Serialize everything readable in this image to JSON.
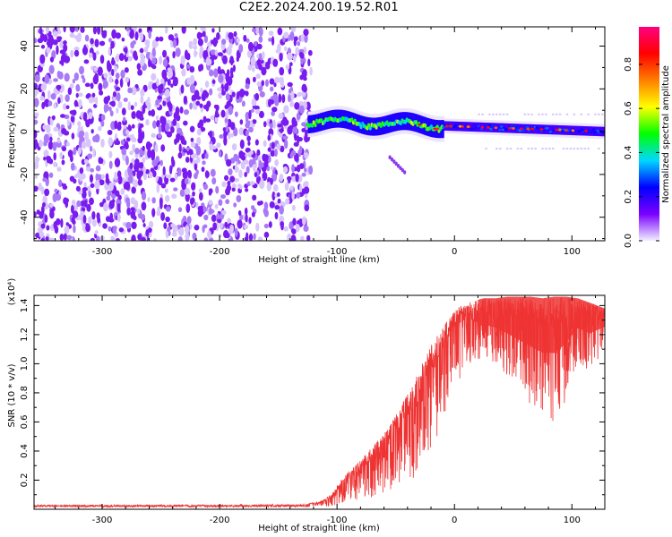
{
  "page": {
    "title": "C2E2.2024.200.19.52.R01"
  },
  "chart_data": [
    {
      "type": "heatmap",
      "title": "C2E2.2024.200.19.52.R01",
      "xlabel": "Height of straight line (km)",
      "ylabel": "Frequency (Hz)",
      "xlim": [
        -358,
        128
      ],
      "ylim": [
        -51,
        49
      ],
      "x_ticks": [
        -300,
        -200,
        -100,
        0,
        100
      ],
      "y_ticks": [
        -40,
        -20,
        0,
        20,
        40
      ],
      "colorbar": {
        "label": "Normalized spectral amplitude",
        "range": [
          0,
          0.97
        ],
        "ticks": [
          0.0,
          0.2,
          0.4,
          0.6,
          0.8
        ],
        "colormap": [
          "#f2f0ff",
          "#7b00ff",
          "#0000ff",
          "#00d8ff",
          "#00ff00",
          "#ffff00",
          "#ff7f00",
          "#ff0000",
          "#ff0080"
        ]
      },
      "regions": [
        {
          "name": "noise",
          "x_range": [
            -358,
            -122
          ],
          "freq_range": [
            -51,
            49
          ],
          "amplitude": 0.08
        },
        {
          "name": "signal",
          "x_range": [
            -125,
            128
          ],
          "freq_center_start": 5,
          "freq_center_end": 0,
          "amplitude_max": 0.95
        }
      ]
    },
    {
      "type": "line",
      "xlabel": "Height of straight line (km)",
      "ylabel": "SNR (10 * v/v)",
      "y_multiplier": "(x10⁴)",
      "xlim": [
        -358,
        128
      ],
      "ylim": [
        0,
        1.47
      ],
      "x_ticks": [
        -300,
        -200,
        -100,
        0,
        100
      ],
      "y_ticks": [
        0.2,
        0.4,
        0.6,
        0.8,
        1.0,
        1.2,
        1.4
      ],
      "color": "#ee3333",
      "series": [
        {
          "x": [
            -358,
            -300,
            -200,
            -130,
            -115,
            -105,
            -95,
            -85,
            -75,
            -65,
            -55,
            -45,
            -35,
            -25,
            -15,
            -5,
            5,
            15,
            25,
            35,
            45,
            55,
            65,
            75,
            85,
            95,
            105,
            115,
            128
          ],
          "y_upper": [
            0.03,
            0.03,
            0.03,
            0.035,
            0.05,
            0.1,
            0.22,
            0.3,
            0.38,
            0.48,
            0.58,
            0.72,
            0.86,
            1.05,
            1.2,
            1.32,
            1.4,
            1.43,
            1.45,
            1.45,
            1.46,
            1.46,
            1.46,
            1.45,
            1.46,
            1.46,
            1.45,
            1.42,
            1.38
          ],
          "y_lower": [
            0.015,
            0.015,
            0.015,
            0.015,
            0.02,
            0.02,
            0.04,
            0.06,
            0.07,
            0.09,
            0.12,
            0.15,
            0.2,
            0.35,
            0.5,
            0.7,
            0.9,
            1.0,
            1.05,
            1.0,
            0.9,
            0.8,
            0.7,
            0.62,
            0.6,
            0.75,
            1.0,
            0.95,
            1.1
          ]
        }
      ]
    }
  ]
}
